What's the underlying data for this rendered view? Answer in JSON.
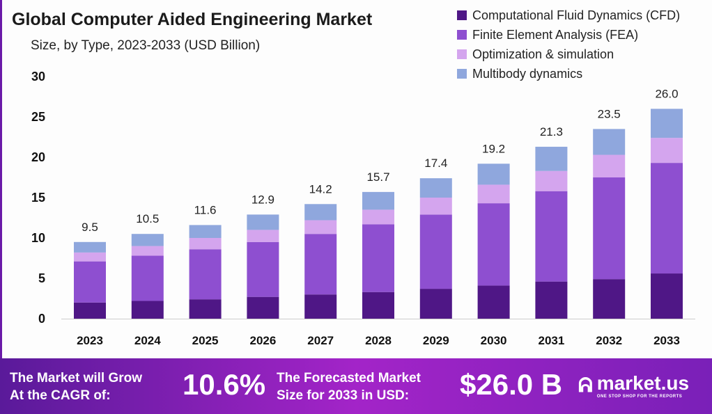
{
  "chart_data": {
    "type": "bar",
    "stacked": true,
    "title": "Global Computer Aided Engineering Market",
    "subtitle": "Size, by Type, 2023-2033 (USD Billion)",
    "xlabel": "",
    "ylabel": "",
    "ylim": [
      0,
      30
    ],
    "yticks": [
      0,
      5,
      10,
      15,
      20,
      25,
      30
    ],
    "grid": false,
    "legend_position": "top-right",
    "categories": [
      "2023",
      "2024",
      "2025",
      "2026",
      "2027",
      "2028",
      "2029",
      "2030",
      "2031",
      "2032",
      "2033"
    ],
    "totals": [
      "9.5",
      "10.5",
      "11.6",
      "12.9",
      "14.2",
      "15.7",
      "17.4",
      "19.2",
      "21.3",
      "23.5",
      "26.0"
    ],
    "series": [
      {
        "name": "Computational Fluid Dynamics (CFD)",
        "color": "#4f1786",
        "values": [
          2.0,
          2.2,
          2.4,
          2.7,
          3.0,
          3.3,
          3.7,
          4.1,
          4.6,
          4.9,
          5.6
        ]
      },
      {
        "name": "Finite Element Analysis (FEA)",
        "color": "#8e4fd0",
        "values": [
          5.1,
          5.6,
          6.2,
          6.8,
          7.5,
          8.4,
          9.2,
          10.2,
          11.2,
          12.6,
          13.7
        ]
      },
      {
        "name": "Optimization & simulation",
        "color": "#d4a5ee",
        "values": [
          1.1,
          1.2,
          1.4,
          1.5,
          1.7,
          1.8,
          2.1,
          2.3,
          2.5,
          2.8,
          3.1
        ]
      },
      {
        "name": "Multibody dynamics",
        "color": "#8fa7dd",
        "values": [
          1.3,
          1.5,
          1.6,
          1.9,
          2.0,
          2.2,
          2.4,
          2.6,
          3.0,
          3.2,
          3.6
        ]
      }
    ]
  },
  "footer": {
    "cagr_label_1": "The Market will Grow",
    "cagr_label_2": "At the CAGR of:",
    "cagr_value": "10.6%",
    "size_label_1": "The Forecasted Market",
    "size_label_2": "Size for 2033 in USD:",
    "size_value": "$26.0 B",
    "logo_text": "market.us",
    "logo_tagline": "ONE STOP SHOP FOR THE REPORTS"
  }
}
